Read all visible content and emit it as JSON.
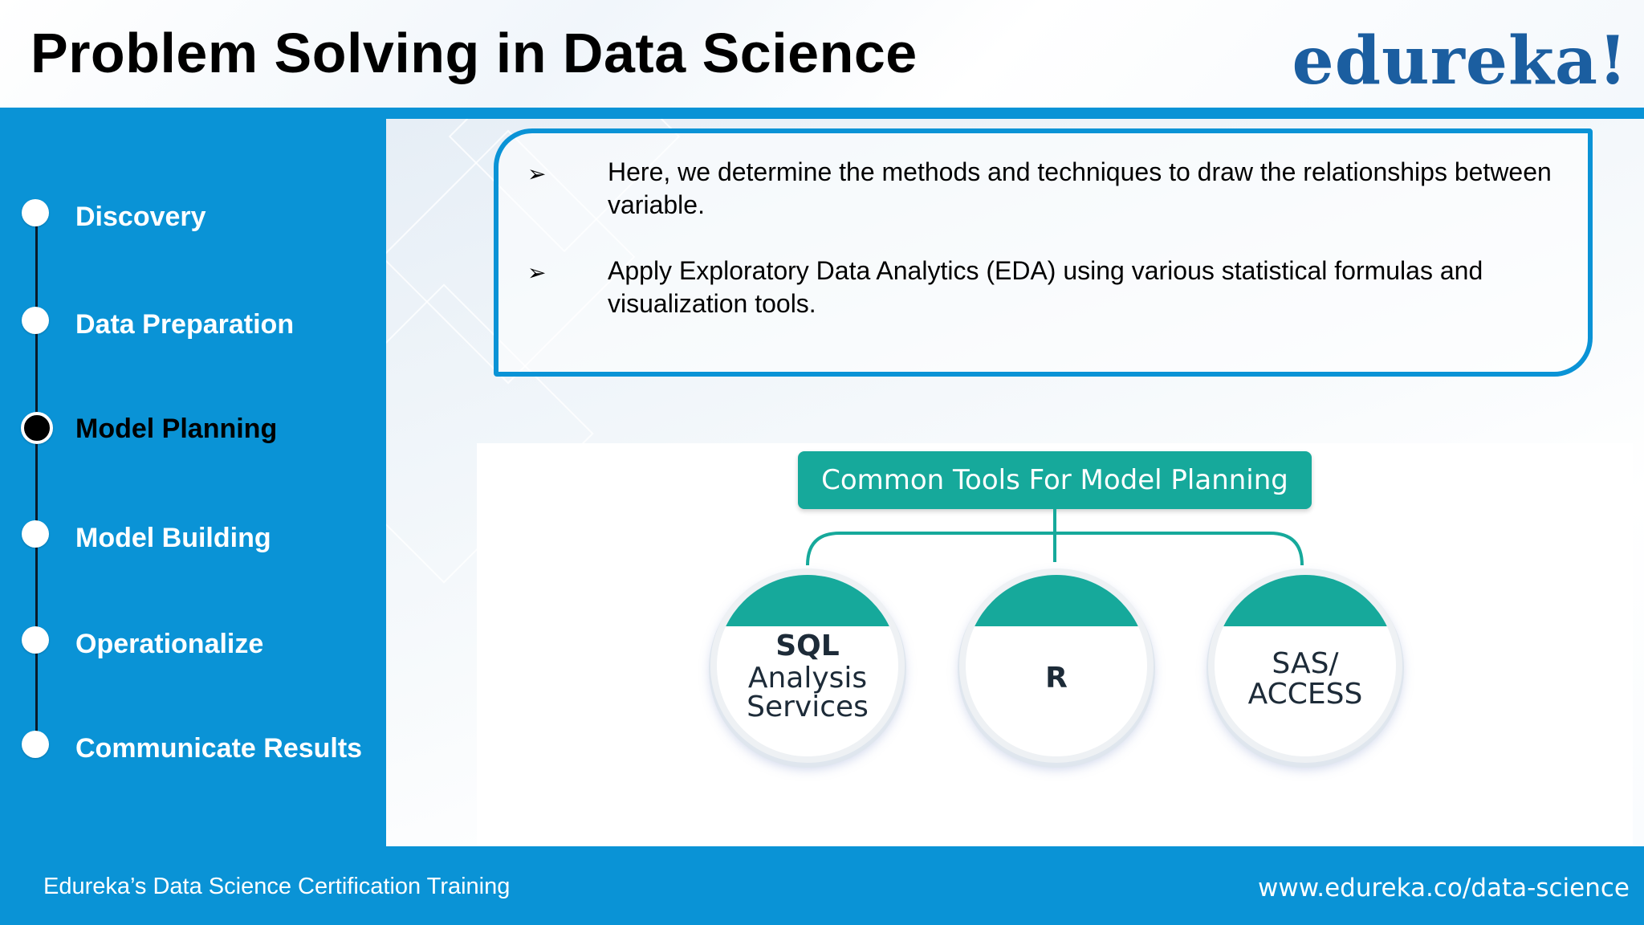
{
  "header": {
    "title": "Problem Solving in Data Science",
    "logo": "edureka!"
  },
  "sidebar": {
    "steps": [
      {
        "label": "Discovery",
        "active": false
      },
      {
        "label": "Data Preparation",
        "active": false
      },
      {
        "label": "Model Planning",
        "active": true
      },
      {
        "label": "Model Building",
        "active": false
      },
      {
        "label": "Operationalize",
        "active": false
      },
      {
        "label": "Communicate Results",
        "active": false
      }
    ]
  },
  "callout": {
    "bullets": [
      "Here, we determine the methods and techniques to draw the relationships between variable.",
      "Apply Exploratory Data Analytics (EDA) using various statistical formulas and visualization tools."
    ],
    "bullet_icon": "arrowhead-bullet-icon"
  },
  "diagram": {
    "title": "Common Tools For Model Planning",
    "tools": [
      {
        "line1": "SQL",
        "line2": "Analysis",
        "line3": "Services"
      },
      {
        "line1": "R"
      },
      {
        "line1": "SAS/",
        "line2": "ACCESS"
      }
    ]
  },
  "footer": {
    "left": "Edureka’s Data Science Certification Training",
    "right": "www.edureka.co/data-science"
  },
  "colors": {
    "brand_blue": "#0a93d6",
    "logo_blue": "#1b5ea0",
    "teal": "#16a99b"
  }
}
